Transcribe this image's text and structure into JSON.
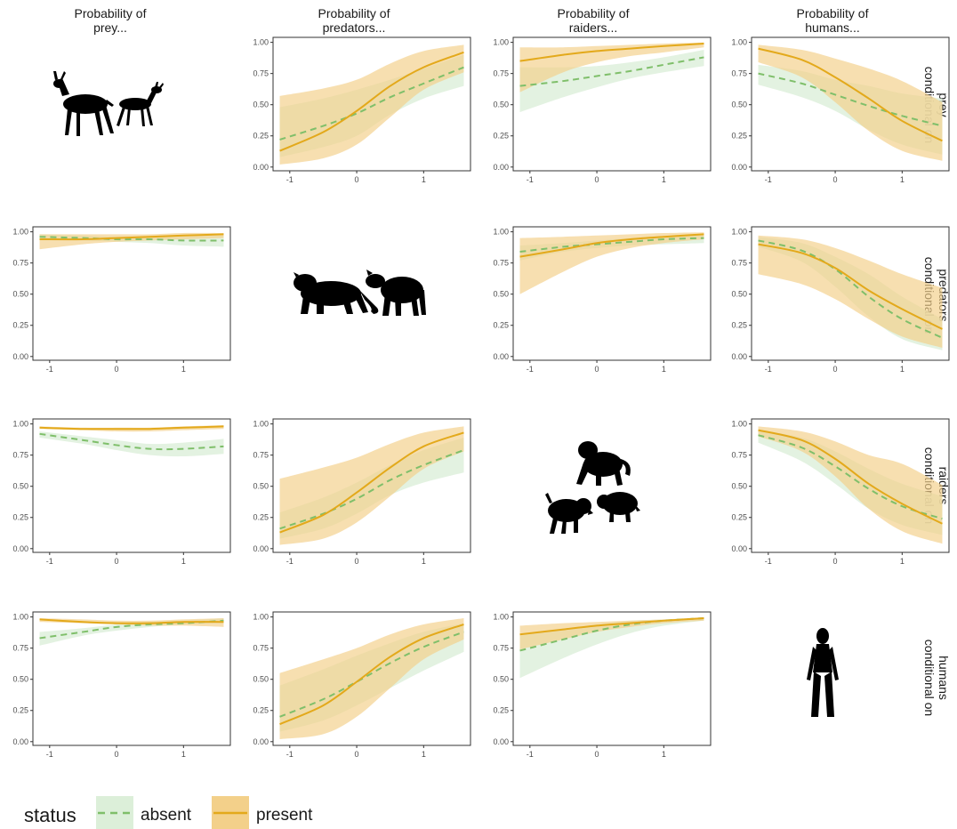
{
  "colors": {
    "absent": "#7fbf6a",
    "absent_fill": "#dcefd9",
    "present": "#e3a91b",
    "present_fill": "#f3d08a"
  },
  "column_titles": [
    [
      "Probability of",
      "prey..."
    ],
    [
      "Probability of",
      "predators..."
    ],
    [
      "Probability of",
      "raiders..."
    ],
    [
      "Probability of",
      "humans..."
    ]
  ],
  "row_titles": [
    [
      "conditional on",
      "prey"
    ],
    [
      "conditional on",
      "predators"
    ],
    [
      "conditional on",
      "raiders"
    ],
    [
      "conditional on",
      "humans"
    ]
  ],
  "diagonal_icons": [
    "antelope-silhouette-icon",
    "big-cat-and-hyena-silhouette-icon",
    "baboon-and-warthogs-silhouette-icon",
    "human-silhouette-icon"
  ],
  "legend": {
    "title": "status",
    "items": [
      {
        "key": "absent",
        "label": "absent",
        "style": "dashed"
      },
      {
        "key": "present",
        "label": "present",
        "style": "solid"
      }
    ]
  },
  "chart_data": {
    "type": "line",
    "layout": "4x4 facet grid",
    "x_ticks": [
      -1,
      0,
      1
    ],
    "x_tick_labels": [
      "-1",
      "0",
      "1"
    ],
    "y_ticks": [
      0,
      0.25,
      0.5,
      0.75,
      1
    ],
    "y_tick_labels": [
      "0.00",
      "0.25",
      "0.50",
      "0.75",
      "1.00"
    ],
    "xlim": [
      -1.25,
      1.7
    ],
    "ylim": [
      -0.03,
      1.04
    ],
    "x": [
      -1.15,
      -0.5,
      0,
      0.5,
      1.0,
      1.6
    ],
    "panels": [
      {
        "row": 0,
        "col": 1,
        "series": [
          {
            "name": "absent",
            "y": [
              0.22,
              0.33,
              0.43,
              0.56,
              0.67,
              0.8
            ],
            "lo": [
              0.08,
              0.16,
              0.25,
              0.42,
              0.55,
              0.65
            ],
            "hi": [
              0.48,
              0.55,
              0.62,
              0.7,
              0.79,
              0.9
            ]
          },
          {
            "name": "present",
            "y": [
              0.13,
              0.28,
              0.45,
              0.65,
              0.8,
              0.92
            ],
            "lo": [
              0.02,
              0.07,
              0.18,
              0.4,
              0.62,
              0.76
            ],
            "hi": [
              0.57,
              0.63,
              0.7,
              0.83,
              0.93,
              0.98
            ]
          }
        ]
      },
      {
        "row": 0,
        "col": 2,
        "series": [
          {
            "name": "absent",
            "y": [
              0.65,
              0.69,
              0.73,
              0.77,
              0.82,
              0.88
            ],
            "lo": [
              0.44,
              0.56,
              0.64,
              0.71,
              0.76,
              0.81
            ],
            "hi": [
              0.8,
              0.8,
              0.81,
              0.84,
              0.88,
              0.94
            ]
          },
          {
            "name": "present",
            "y": [
              0.85,
              0.9,
              0.93,
              0.95,
              0.97,
              0.99
            ],
            "lo": [
              0.6,
              0.76,
              0.84,
              0.89,
              0.92,
              0.96
            ],
            "hi": [
              0.96,
              0.96,
              0.97,
              0.98,
              0.99,
              0.999
            ]
          }
        ]
      },
      {
        "row": 0,
        "col": 3,
        "series": [
          {
            "name": "absent",
            "y": [
              0.75,
              0.67,
              0.58,
              0.49,
              0.41,
              0.33
            ],
            "lo": [
              0.66,
              0.56,
              0.45,
              0.3,
              0.18,
              0.1
            ],
            "hi": [
              0.82,
              0.77,
              0.7,
              0.65,
              0.59,
              0.55
            ]
          },
          {
            "name": "present",
            "y": [
              0.95,
              0.86,
              0.72,
              0.55,
              0.37,
              0.21
            ],
            "lo": [
              0.84,
              0.72,
              0.52,
              0.29,
              0.13,
              0.05
            ],
            "hi": [
              0.98,
              0.94,
              0.87,
              0.79,
              0.69,
              0.52
            ]
          }
        ]
      },
      {
        "row": 1,
        "col": 0,
        "series": [
          {
            "name": "absent",
            "y": [
              0.96,
              0.95,
              0.94,
              0.94,
              0.93,
              0.93
            ],
            "lo": [
              0.94,
              0.93,
              0.92,
              0.91,
              0.89,
              0.88
            ],
            "hi": [
              0.98,
              0.97,
              0.96,
              0.96,
              0.96,
              0.97
            ]
          },
          {
            "name": "present",
            "y": [
              0.94,
              0.94,
              0.95,
              0.96,
              0.97,
              0.98
            ],
            "lo": [
              0.86,
              0.9,
              0.92,
              0.93,
              0.94,
              0.95
            ],
            "hi": [
              0.98,
              0.98,
              0.98,
              0.98,
              0.99,
              0.99
            ]
          }
        ]
      },
      {
        "row": 1,
        "col": 2,
        "series": [
          {
            "name": "absent",
            "y": [
              0.84,
              0.88,
              0.9,
              0.92,
              0.94,
              0.95
            ],
            "lo": [
              0.77,
              0.84,
              0.87,
              0.89,
              0.9,
              0.91
            ],
            "hi": [
              0.89,
              0.91,
              0.93,
              0.95,
              0.96,
              0.98
            ]
          },
          {
            "name": "present",
            "y": [
              0.8,
              0.86,
              0.91,
              0.94,
              0.96,
              0.98
            ],
            "lo": [
              0.5,
              0.68,
              0.8,
              0.87,
              0.91,
              0.94
            ],
            "hi": [
              0.95,
              0.96,
              0.97,
              0.98,
              0.99,
              0.995
            ]
          }
        ]
      },
      {
        "row": 1,
        "col": 3,
        "series": [
          {
            "name": "absent",
            "y": [
              0.93,
              0.85,
              0.7,
              0.48,
              0.3,
              0.15
            ],
            "lo": [
              0.88,
              0.76,
              0.56,
              0.32,
              0.14,
              0.05
            ],
            "hi": [
              0.96,
              0.91,
              0.8,
              0.66,
              0.48,
              0.3
            ]
          },
          {
            "name": "present",
            "y": [
              0.9,
              0.83,
              0.71,
              0.53,
              0.38,
              0.22
            ],
            "lo": [
              0.66,
              0.58,
              0.46,
              0.3,
              0.16,
              0.07
            ],
            "hi": [
              0.97,
              0.94,
              0.87,
              0.77,
              0.66,
              0.55
            ]
          }
        ]
      },
      {
        "row": 2,
        "col": 0,
        "series": [
          {
            "name": "absent",
            "y": [
              0.92,
              0.87,
              0.83,
              0.8,
              0.8,
              0.82
            ],
            "lo": [
              0.89,
              0.84,
              0.79,
              0.75,
              0.74,
              0.76
            ],
            "hi": [
              0.94,
              0.9,
              0.87,
              0.84,
              0.85,
              0.88
            ]
          },
          {
            "name": "present",
            "y": [
              0.97,
              0.96,
              0.96,
              0.96,
              0.97,
              0.98
            ],
            "lo": [
              0.96,
              0.95,
              0.94,
              0.94,
              0.95,
              0.96
            ],
            "hi": [
              0.98,
              0.97,
              0.97,
              0.97,
              0.98,
              0.99
            ]
          }
        ]
      },
      {
        "row": 2,
        "col": 1,
        "series": [
          {
            "name": "absent",
            "y": [
              0.16,
              0.28,
              0.4,
              0.55,
              0.67,
              0.79
            ],
            "lo": [
              0.08,
              0.16,
              0.28,
              0.43,
              0.53,
              0.61
            ],
            "hi": [
              0.29,
              0.41,
              0.53,
              0.67,
              0.79,
              0.89
            ]
          },
          {
            "name": "present",
            "y": [
              0.13,
              0.27,
              0.45,
              0.65,
              0.82,
              0.93
            ],
            "lo": [
              0.03,
              0.08,
              0.21,
              0.42,
              0.64,
              0.78
            ],
            "hi": [
              0.56,
              0.65,
              0.73,
              0.84,
              0.93,
              0.98
            ]
          }
        ]
      },
      {
        "row": 2,
        "col": 3,
        "series": [
          {
            "name": "absent",
            "y": [
              0.91,
              0.81,
              0.66,
              0.48,
              0.34,
              0.24
            ],
            "lo": [
              0.85,
              0.7,
              0.52,
              0.32,
              0.19,
              0.11
            ],
            "hi": [
              0.95,
              0.89,
              0.78,
              0.64,
              0.52,
              0.42
            ]
          },
          {
            "name": "present",
            "y": [
              0.95,
              0.87,
              0.72,
              0.52,
              0.36,
              0.2
            ],
            "lo": [
              0.9,
              0.78,
              0.58,
              0.32,
              0.14,
              0.04
            ],
            "hi": [
              0.98,
              0.94,
              0.86,
              0.75,
              0.68,
              0.51
            ]
          }
        ]
      },
      {
        "row": 3,
        "col": 0,
        "series": [
          {
            "name": "absent",
            "y": [
              0.83,
              0.88,
              0.92,
              0.94,
              0.95,
              0.97
            ],
            "lo": [
              0.77,
              0.85,
              0.89,
              0.92,
              0.94,
              0.95
            ],
            "hi": [
              0.88,
              0.91,
              0.94,
              0.96,
              0.97,
              0.99
            ]
          },
          {
            "name": "present",
            "y": [
              0.98,
              0.96,
              0.95,
              0.95,
              0.96,
              0.96
            ],
            "lo": [
              0.96,
              0.95,
              0.94,
              0.93,
              0.93,
              0.92
            ],
            "hi": [
              0.99,
              0.98,
              0.97,
              0.97,
              0.98,
              0.99
            ]
          }
        ]
      },
      {
        "row": 3,
        "col": 1,
        "series": [
          {
            "name": "absent",
            "y": [
              0.2,
              0.34,
              0.48,
              0.63,
              0.76,
              0.88
            ],
            "lo": [
              0.08,
              0.17,
              0.29,
              0.43,
              0.57,
              0.72
            ],
            "hi": [
              0.45,
              0.58,
              0.69,
              0.79,
              0.88,
              0.95
            ]
          },
          {
            "name": "present",
            "y": [
              0.14,
              0.29,
              0.48,
              0.68,
              0.83,
              0.94
            ],
            "lo": [
              0.02,
              0.06,
              0.2,
              0.43,
              0.66,
              0.82
            ],
            "hi": [
              0.55,
              0.66,
              0.75,
              0.86,
              0.94,
              0.99
            ]
          }
        ]
      },
      {
        "row": 3,
        "col": 2,
        "series": [
          {
            "name": "absent",
            "y": [
              0.73,
              0.82,
              0.89,
              0.94,
              0.97,
              0.99
            ],
            "lo": [
              0.51,
              0.67,
              0.78,
              0.87,
              0.93,
              0.97
            ],
            "hi": [
              0.85,
              0.9,
              0.94,
              0.97,
              0.98,
              0.995
            ]
          },
          {
            "name": "present",
            "y": [
              0.86,
              0.9,
              0.93,
              0.95,
              0.97,
              0.99
            ],
            "lo": [
              0.74,
              0.82,
              0.88,
              0.92,
              0.95,
              0.97
            ],
            "hi": [
              0.93,
              0.95,
              0.96,
              0.97,
              0.98,
              0.995
            ]
          }
        ]
      }
    ]
  }
}
